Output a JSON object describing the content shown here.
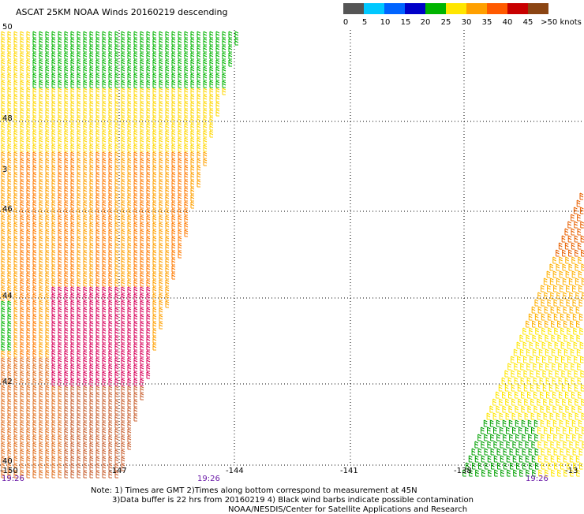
{
  "title": "ASCAT 25KM NOAA Winds 20160219 descending",
  "legend": {
    "colors": [
      "#555555",
      "#00c8ff",
      "#0064ff",
      "#0000c8",
      "#00b400",
      "#ffe600",
      "#ffa000",
      "#ff5a00",
      "#c80000",
      "#8b4513",
      "#ff00ff",
      "#8800aa"
    ],
    "labels": [
      "0",
      "5",
      "10",
      "15",
      "20",
      "25",
      "30",
      "35",
      "40",
      "45",
      ">50 knots"
    ]
  },
  "grid": {
    "lat_labels": [
      "50",
      "48",
      "46",
      "44",
      "42",
      "40"
    ],
    "lat_partial": "3",
    "lon_labels": [
      "-150",
      "-147",
      "-144",
      "-141",
      "-138",
      "-13"
    ]
  },
  "times": [
    "19:26",
    "19:26",
    "19:26"
  ],
  "notes": {
    "line1": "Note: 1) Times are GMT 2)Times along bottom correspond to measurement at 45N",
    "line2": "3)Data buffer is 22 hrs from 20160219 4) Black wind barbs indicate possible contamination",
    "line3": "NOAA/NESDIS/Center for Satellite Applications and Research"
  }
}
